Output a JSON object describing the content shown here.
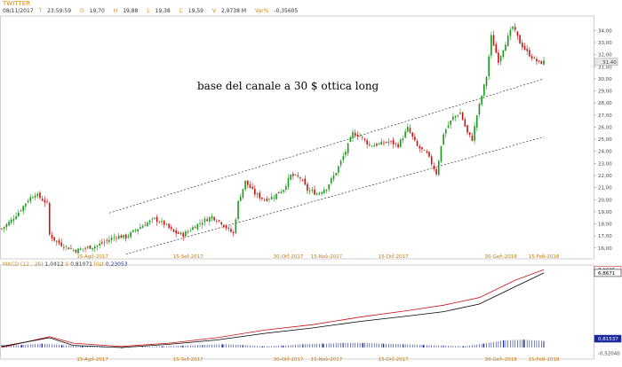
{
  "header": {
    "symbol": "TWITTER",
    "date": "08/11/2017",
    "time_label": "T",
    "time": "23:59:59",
    "open_label": "O",
    "open": "19,70",
    "high_label": "H",
    "high": "19,88",
    "low_label": "L",
    "low": "19,38",
    "close_label": "C",
    "close": "19,59",
    "volume_label": "V",
    "volume": "2,9738 M",
    "var_label": "Var%",
    "var": "-0,35605"
  },
  "macd_header": {
    "name": "MACD",
    "params": "(12 , 26)",
    "macd_value": "1,0412",
    "signal_label": "S",
    "signal_value": "0,81071",
    "hist_label": "hist",
    "hist_value": "0,23053"
  },
  "annotation": "base del canale a 30 $ ottica long",
  "colors": {
    "up": "#1a9a1a",
    "down": "#cc1010",
    "macd_line": "#000000",
    "signal_line": "#cc1010",
    "hist": "#1a2a9a",
    "accent": "#e08a00"
  },
  "chart_data": {
    "type": "candlestick",
    "title": "TWITTER",
    "price_axis": {
      "ticks": [
        "34,00",
        "33,00",
        "32,00",
        "31,00",
        "30,00",
        "29,00",
        "28,00",
        "27,00",
        "26,00",
        "25,00",
        "24,00",
        "23,00",
        "22,00",
        "21,00",
        "20,00",
        "19,00",
        "18,00",
        "17,00",
        "16,00"
      ],
      "range": [
        15.4,
        35.2
      ],
      "last_price_label": "31,40",
      "last_price": 31.4
    },
    "x_tick_labels": [
      "15-Ago-2017",
      "15-Set-2017",
      "30-Ott-2017",
      "15-Nov-2017",
      "15-Dic-2017",
      "30-Gen-2018",
      "15-Feb-2018"
    ],
    "x_tick_positions": [
      38,
      78,
      120,
      136,
      164,
      209,
      227
    ],
    "close_path": [
      [
        0,
        17.6
      ],
      [
        4,
        18.3
      ],
      [
        8,
        19.2
      ],
      [
        11,
        20.0
      ],
      [
        14,
        20.5
      ],
      [
        17,
        20.0
      ],
      [
        19,
        19.7
      ],
      [
        20,
        17.1
      ],
      [
        23,
        16.5
      ],
      [
        27,
        16.1
      ],
      [
        31,
        15.8
      ],
      [
        35,
        16.0
      ],
      [
        40,
        16.2
      ],
      [
        44,
        16.6
      ],
      [
        48,
        17.0
      ],
      [
        52,
        16.9
      ],
      [
        56,
        17.5
      ],
      [
        60,
        18.0
      ],
      [
        64,
        18.4
      ],
      [
        68,
        18.0
      ],
      [
        72,
        17.3
      ],
      [
        76,
        17.1
      ],
      [
        80,
        17.7
      ],
      [
        84,
        18.2
      ],
      [
        88,
        18.6
      ],
      [
        92,
        18.1
      ],
      [
        95,
        17.5
      ],
      [
        97,
        17.2
      ],
      [
        99,
        19.8
      ],
      [
        102,
        21.5
      ],
      [
        106,
        20.5
      ],
      [
        110,
        20.0
      ],
      [
        114,
        20.3
      ],
      [
        118,
        20.9
      ],
      [
        121,
        22.0
      ],
      [
        125,
        21.8
      ],
      [
        128,
        20.8
      ],
      [
        132,
        20.5
      ],
      [
        136,
        21.0
      ],
      [
        140,
        22.3
      ],
      [
        144,
        24.0
      ],
      [
        147,
        25.5
      ],
      [
        150,
        25.3
      ],
      [
        154,
        24.5
      ],
      [
        158,
        24.6
      ],
      [
        162,
        24.8
      ],
      [
        166,
        24.5
      ],
      [
        170,
        25.9
      ],
      [
        174,
        24.4
      ],
      [
        178,
        23.8
      ],
      [
        182,
        22.2
      ],
      [
        185,
        25.5
      ],
      [
        189,
        26.8
      ],
      [
        192,
        27.2
      ],
      [
        195,
        25.5
      ],
      [
        197,
        25.0
      ],
      [
        199,
        27.0
      ],
      [
        203,
        30.2
      ],
      [
        205,
        33.5
      ],
      [
        208,
        31.5
      ],
      [
        211,
        33.0
      ],
      [
        214,
        34.3
      ],
      [
        217,
        33.0
      ],
      [
        220,
        32.2
      ],
      [
        222,
        31.8
      ],
      [
        225,
        31.3
      ],
      [
        227,
        31.4
      ]
    ],
    "index_range": [
      0,
      227
    ],
    "channel": {
      "upper": {
        "start": [
          45,
          18.9
        ],
        "end": [
          227,
          30.0
        ]
      },
      "lower": {
        "start": [
          52,
          15.5
        ],
        "end": [
          227,
          25.2
        ]
      }
    },
    "macd_axis": {
      "ticks": [
        "7,1625",
        "6,8671",
        "0,81537",
        "-0,52040"
      ],
      "range": [
        -0.65,
        7.35
      ]
    },
    "macd": {
      "macd_line": [
        [
          0,
          0.1
        ],
        [
          20,
          0.9
        ],
        [
          30,
          0.2
        ],
        [
          50,
          0.0
        ],
        [
          70,
          0.3
        ],
        [
          90,
          0.7
        ],
        [
          110,
          1.3
        ],
        [
          130,
          1.8
        ],
        [
          150,
          2.4
        ],
        [
          170,
          2.9
        ],
        [
          185,
          3.3
        ],
        [
          200,
          4.0
        ],
        [
          215,
          5.6
        ],
        [
          227,
          6.87
        ]
      ],
      "signal_line": [
        [
          0,
          0.0
        ],
        [
          20,
          1.0
        ],
        [
          30,
          0.4
        ],
        [
          50,
          0.1
        ],
        [
          70,
          0.4
        ],
        [
          90,
          0.9
        ],
        [
          110,
          1.6
        ],
        [
          130,
          2.1
        ],
        [
          150,
          2.8
        ],
        [
          170,
          3.4
        ],
        [
          185,
          3.9
        ],
        [
          200,
          4.6
        ],
        [
          215,
          6.2
        ],
        [
          227,
          7.16
        ]
      ],
      "histogram_levels": [
        0.2,
        0.2,
        0.3,
        0.2,
        0.1,
        0.05,
        -0.05,
        0.05,
        0.1,
        0.15,
        0.2,
        0.25,
        0.2,
        0.1,
        0.15,
        0.25,
        0.3,
        0.35,
        0.35,
        0.3,
        0.25,
        0.2,
        0.15,
        0.1,
        0.3,
        0.55,
        0.6,
        0.5
      ]
    }
  }
}
